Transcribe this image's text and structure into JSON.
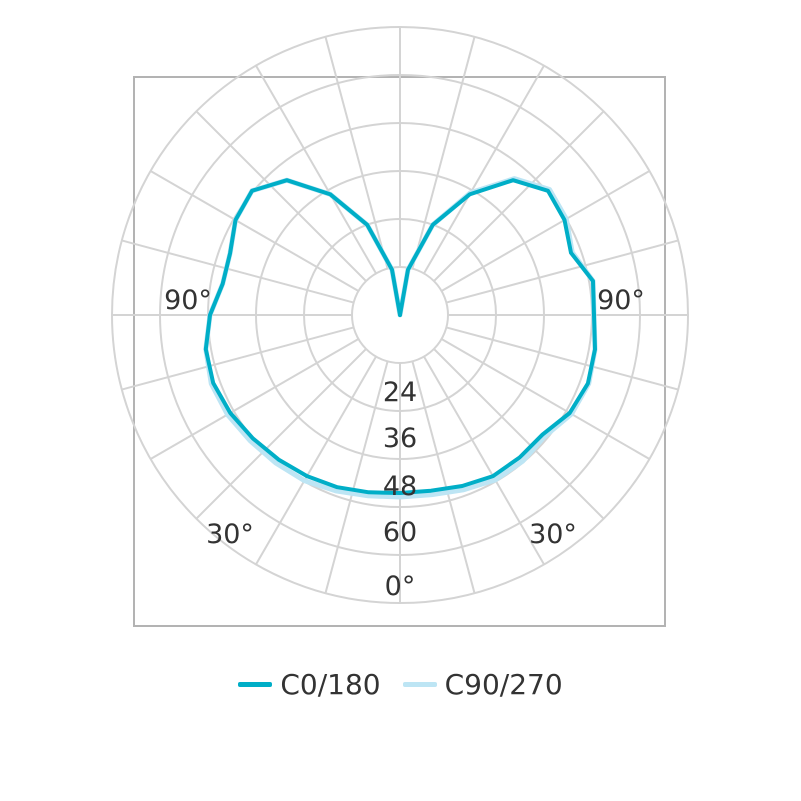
{
  "chart_data": {
    "type": "polar",
    "title": "",
    "angular_axis": {
      "range_deg": [
        -180,
        180
      ],
      "spoke_step_deg": 15,
      "zero_at": "bottom",
      "labels": [
        {
          "text": "90°",
          "angle": -90
        },
        {
          "text": "90°",
          "angle": 90
        },
        {
          "text": "30°",
          "angle": -30
        },
        {
          "text": "30°",
          "angle": 30
        },
        {
          "text": "0°",
          "angle": 0
        }
      ]
    },
    "radial_axis": {
      "min": 0,
      "max": 72,
      "rings": [
        12,
        24,
        36,
        48,
        60,
        72
      ],
      "tick_labels": [
        "24",
        "36",
        "48",
        "60"
      ]
    },
    "grid": true,
    "legend": {
      "placement": "bottom"
    },
    "series": [
      {
        "name": "C0/180",
        "color": "#00aec7",
        "angles": [
          -180,
          -170,
          -160,
          -150,
          -140,
          -130,
          -120,
          -110,
          -100,
          -90,
          -80,
          -70,
          -60,
          -50,
          -40,
          -30,
          -20,
          -10,
          0,
          10,
          20,
          30,
          40,
          50,
          60,
          70,
          80,
          90,
          100,
          110,
          120,
          130,
          140,
          150,
          160,
          170,
          180
        ],
        "values": [
          0,
          11.5,
          24,
          34.8,
          44,
          48.3,
          47.5,
          45.2,
          45,
          47.5,
          49.3,
          49.7,
          49,
          48,
          47.2,
          46.5,
          45.8,
          45,
          44.5,
          44.6,
          45.5,
          46.5,
          46.5,
          46.5,
          49,
          50,
          49.5,
          48.5,
          49,
          45.5,
          47.5,
          48.3,
          44,
          34.8,
          24,
          11.5,
          0
        ]
      },
      {
        "name": "C90/270",
        "color": "#bde5f4",
        "angles": [
          -180,
          -170,
          -160,
          -150,
          -140,
          -130,
          -120,
          -110,
          -100,
          -90,
          -80,
          -70,
          -60,
          -50,
          -40,
          -30,
          -20,
          -10,
          0,
          10,
          20,
          30,
          40,
          50,
          60,
          70,
          80,
          90,
          100,
          110,
          120,
          130,
          140,
          150,
          160,
          170,
          180
        ],
        "values": [
          0,
          11.5,
          24,
          34.8,
          44,
          48.3,
          47.5,
          45.2,
          45,
          47.5,
          49.3,
          50.2,
          49.8,
          48.9,
          48.3,
          47.8,
          46.8,
          45.9,
          45.5,
          45.6,
          46.5,
          47.6,
          47.7,
          47.2,
          49.5,
          50.2,
          49.5,
          48.5,
          49,
          45.8,
          48,
          48.8,
          44.5,
          35.3,
          24,
          11.5,
          0
        ]
      }
    ]
  }
}
